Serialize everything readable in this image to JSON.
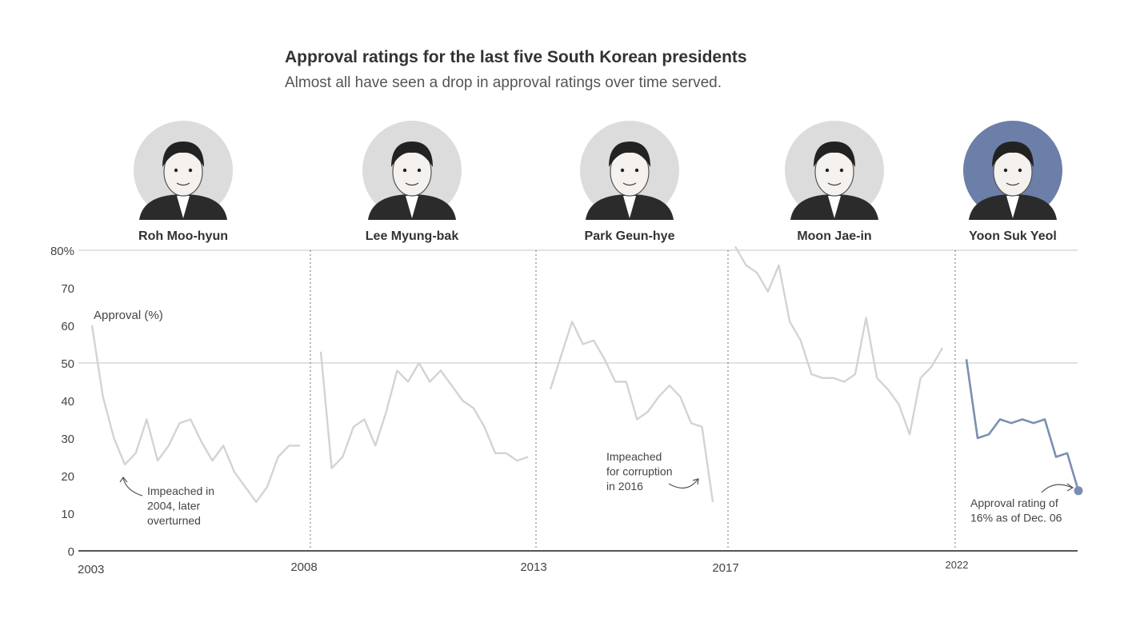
{
  "chart_data": {
    "type": "line",
    "title": "Approval ratings for the last five South Korean presidents",
    "subtitle": "Almost all have seen a drop in approval ratings over time served.",
    "ylabel": "Approval (%)",
    "ylim": [
      0,
      80
    ],
    "yticks": [
      "0",
      "10",
      "20",
      "30",
      "40",
      "50",
      "60",
      "70",
      "80%"
    ],
    "x_tick_labels": [
      "2003",
      "2008",
      "2013",
      "2017",
      "2022"
    ],
    "grid": "horizontal at 50 and 80",
    "series": [
      {
        "name": "Roh Moo-hyun",
        "start": "2003-02",
        "end": "2008-02",
        "color": "#d3d3d3",
        "values": [
          60,
          41,
          30,
          23,
          26,
          35,
          24,
          28,
          34,
          35,
          29,
          24,
          28,
          21,
          17,
          13,
          17,
          25,
          28,
          28
        ]
      },
      {
        "name": "Lee Myung-bak",
        "start": "2008-02",
        "end": "2013-02",
        "color": "#d3d3d3",
        "values": [
          53,
          22,
          25,
          33,
          35,
          28,
          37,
          48,
          45,
          50,
          45,
          48,
          44,
          40,
          38,
          33,
          26,
          26,
          24,
          25
        ]
      },
      {
        "name": "Park Geun-hye",
        "start": "2013-02",
        "end": "2017-03",
        "color": "#d3d3d3",
        "values": [
          43,
          52,
          61,
          55,
          56,
          51,
          45,
          45,
          35,
          37,
          41,
          44,
          41,
          34,
          33,
          13
        ]
      },
      {
        "name": "Moon Jae-in",
        "start": "2017-05",
        "end": "2022-05",
        "color": "#d3d3d3",
        "values": [
          81,
          76,
          74,
          69,
          76,
          61,
          56,
          47,
          46,
          46,
          45,
          47,
          62,
          46,
          43,
          39,
          31,
          46,
          49,
          54
        ]
      },
      {
        "name": "Yoon Suk Yeol",
        "start": "2022-05",
        "end": "2024-12",
        "color": "#7a8fb0",
        "values": [
          51,
          30,
          31,
          35,
          34,
          35,
          34,
          35,
          25,
          26,
          16
        ]
      }
    ],
    "annotations": [
      {
        "id": "roh",
        "text": [
          "Impeached in",
          "2004, later",
          "overturned"
        ]
      },
      {
        "id": "park",
        "text": [
          "Impeached",
          "for corruption",
          "in 2016"
        ]
      },
      {
        "id": "yoon",
        "text": [
          "Approval rating of",
          "16% as of Dec. 06"
        ]
      }
    ]
  },
  "presidents": [
    {
      "name": "Roh Moo-hyun",
      "highlight": false
    },
    {
      "name": "Lee Myung-bak",
      "highlight": false
    },
    {
      "name": "Park Geun-hye",
      "highlight": false
    },
    {
      "name": "Moon Jae-in",
      "highlight": false
    },
    {
      "name": "Yoon Suk Yeol",
      "highlight": true
    }
  ],
  "colors": {
    "inactive_line": "#d3d3d3",
    "highlight_line": "#7a8fb0",
    "portrait_bg": "#dcdcdc",
    "portrait_highlight_bg": "#6b7fa8",
    "axis": "#555555"
  }
}
